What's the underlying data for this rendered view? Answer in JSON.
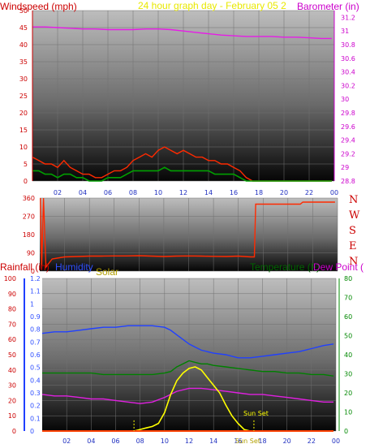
{
  "colors": {
    "wind_text": "#cc0000",
    "wind_series": "#ff2a00",
    "gust_series": "#ff0000",
    "calm_series": "#00a000",
    "baro_text": "#cc00cc",
    "baro_series": "#e61ce6",
    "title_text": "#e8e800",
    "dir_series": "#ff2a00",
    "rain_text": "#cc0000",
    "rain_axis": "#2040ff",
    "humidity_text": "#3050ff",
    "humidity_series": "#2040ff",
    "solar_text": "#b3a000",
    "solar_series": "#ffff00",
    "temp_text": "#006400",
    "temp_series": "#008000",
    "dew_series": "#e020e0",
    "tempaxis_text": "#008800",
    "xaxis_text": "#2030c0",
    "grid": "#707070"
  },
  "chart_data": [
    {
      "type": "line",
      "name": "wind-baro",
      "title": "24 hour graph day - February 05 2",
      "ylabel": "Windspeed (mph)",
      "y2label": "Barometer (in)",
      "xlim": [
        0,
        24
      ],
      "ylim": [
        0,
        50
      ],
      "y2lim": [
        28.8,
        31.3
      ],
      "xticks": [
        "02",
        "04",
        "06",
        "08",
        "10",
        "12",
        "14",
        "16",
        "18",
        "20",
        "22",
        "00"
      ],
      "yticks": [
        "0",
        "5",
        "10",
        "15",
        "20",
        "25",
        "30",
        "35",
        "40",
        "45",
        "50"
      ],
      "y2ticks": [
        "28.8",
        "29",
        "29.2",
        "29.4",
        "29.6",
        "29.8",
        "30",
        "30.2",
        "30.4",
        "30.6",
        "30.8",
        "31",
        "31.2"
      ],
      "series": [
        {
          "x": [
            0,
            1,
            2,
            3,
            4,
            5,
            6,
            7,
            8,
            9,
            10,
            11,
            12,
            13,
            14,
            15,
            16,
            17,
            18,
            19,
            20,
            21,
            22,
            23,
            23.8
          ],
          "values": [
            31.06,
            31.06,
            31.05,
            31.04,
            31.03,
            31.03,
            31.02,
            31.02,
            31.02,
            31.03,
            31.03,
            31.02,
            31.0,
            30.98,
            30.96,
            30.94,
            30.93,
            30.92,
            30.92,
            30.92,
            30.91,
            30.91,
            30.9,
            30.89,
            30.89
          ]
        },
        {
          "x": [
            0,
            0.5,
            1,
            1.5,
            2,
            2.5,
            3,
            3.5,
            4,
            4.5,
            5,
            5.5,
            6,
            6.5,
            7,
            7.5,
            8,
            8.5,
            9,
            9.5,
            10,
            10.5,
            11,
            11.5,
            12,
            12.5,
            13,
            13.5,
            14,
            14.5,
            15,
            15.5,
            16,
            16.5,
            17,
            17.5,
            18,
            19,
            20,
            21,
            22,
            23,
            23.8
          ],
          "values": [
            7,
            6,
            5,
            5,
            4,
            6,
            4,
            3,
            2,
            2,
            1,
            1,
            2,
            3,
            3,
            4,
            6,
            7,
            8,
            7,
            9,
            10,
            9,
            8,
            9,
            8,
            7,
            7,
            6,
            6,
            5,
            5,
            4,
            3,
            1,
            0,
            0,
            0,
            0,
            0,
            0,
            0,
            0
          ]
        },
        {
          "x": [
            0,
            0.5,
            1,
            1.5,
            2,
            2.5,
            3,
            3.5,
            4,
            4.5,
            5,
            5.5,
            6,
            6.5,
            7,
            7.5,
            8,
            8.5,
            9,
            9.5,
            10,
            10.5,
            11,
            11.5,
            12,
            12.5,
            13,
            13.5,
            14,
            14.5,
            15,
            15.5,
            16,
            16.5,
            17,
            17.5,
            18,
            19,
            20,
            21,
            22,
            23,
            23.8
          ],
          "values": [
            3,
            3,
            2,
            2,
            1,
            2,
            2,
            1,
            1,
            0,
            0,
            0,
            1,
            1,
            1,
            2,
            3,
            3,
            3,
            3,
            3,
            4,
            3,
            3,
            3,
            3,
            3,
            3,
            3,
            2,
            2,
            2,
            2,
            1,
            0,
            0,
            0,
            0,
            0,
            0,
            0,
            0,
            0
          ]
        }
      ]
    },
    {
      "type": "line",
      "name": "wind-direction",
      "xlim": [
        0,
        24
      ],
      "ylim": [
        0,
        360
      ],
      "yticks": [
        "0",
        "90",
        "180",
        "270",
        "360"
      ],
      "compass": [
        "N",
        "W",
        "S",
        "E",
        "N"
      ],
      "series": [
        {
          "x": [
            0.05,
            0.15,
            0.3,
            0.5,
            1,
            2,
            3,
            4,
            5,
            6,
            7,
            8,
            9,
            10,
            11,
            12,
            13,
            14,
            15,
            16,
            17,
            17.3,
            17.4,
            18,
            19,
            20,
            21,
            21.2,
            22,
            23,
            23.8
          ],
          "values": [
            360,
            10,
            360,
            20,
            60,
            70,
            72,
            74,
            74,
            75,
            75,
            76,
            74,
            72,
            74,
            75,
            74,
            73,
            72,
            74,
            70,
            70,
            330,
            330,
            330,
            330,
            330,
            340,
            340,
            340,
            340
          ]
        }
      ]
    },
    {
      "type": "line",
      "name": "temp-humidity-solar",
      "ylabel": "Rainfall (in)",
      "y2label": "Humidity",
      "y3label": "Solar",
      "y4label": "Temperature (F)",
      "y5label": "Dew Point (",
      "xlim": [
        0,
        24
      ],
      "ylim": [
        0,
        100
      ],
      "xticks": [
        "02",
        "04",
        "06",
        "08",
        "10",
        "12",
        "14",
        "16",
        "18",
        "20",
        "22",
        "00"
      ],
      "rainticks": [
        "0",
        "0.1",
        "0.2",
        "0.3",
        "0.4",
        "0.5",
        "0.6",
        "0.7",
        "0.8",
        "0.9",
        "1",
        "1.1",
        "1.2"
      ],
      "humticks": [
        "0",
        "10",
        "20",
        "30",
        "40",
        "50",
        "60",
        "70",
        "80",
        "90",
        "100"
      ],
      "tempticks": [
        "0",
        "10",
        "20",
        "30",
        "40",
        "50",
        "60",
        "70",
        "80"
      ],
      "annotations": [
        "Sun Set",
        "Sun Set"
      ],
      "series": [
        {
          "x": [
            0,
            1,
            2,
            3,
            4,
            5,
            6,
            7,
            8,
            9,
            10,
            10.5,
            11,
            11.5,
            12,
            12.5,
            13,
            14,
            15,
            16,
            17,
            18,
            19,
            20,
            21,
            22,
            23,
            23.8
          ],
          "values": [
            64,
            65,
            65,
            66,
            67,
            68,
            68,
            69,
            69,
            69,
            68,
            66,
            63,
            60,
            57,
            55,
            53,
            51,
            50,
            48,
            48,
            49,
            50,
            51,
            52,
            54,
            56,
            57
          ]
        },
        {
          "x": [
            0,
            1,
            2,
            3,
            4,
            5,
            6,
            7,
            8,
            9,
            10,
            10.5,
            11,
            11.5,
            12,
            12.5,
            13,
            13.5,
            14,
            15,
            16,
            17,
            18,
            19,
            20,
            21,
            22,
            23,
            23.8
          ],
          "values": [
            38,
            38,
            38,
            38,
            38,
            37,
            37,
            37,
            37,
            37,
            38,
            39,
            42,
            44,
            46,
            45,
            44,
            44,
            43,
            42,
            41,
            40,
            39,
            39,
            38,
            38,
            37,
            37,
            36
          ]
        },
        {
          "x": [
            0,
            1,
            2,
            3,
            4,
            5,
            6,
            7,
            8,
            9,
            10,
            11,
            12,
            13,
            14,
            15,
            16,
            17,
            18,
            19,
            20,
            21,
            22,
            23,
            23.8
          ],
          "values": [
            24,
            23,
            23,
            22,
            21,
            21,
            20,
            19,
            18,
            19,
            22,
            26,
            28,
            28,
            27,
            26,
            25,
            24,
            24,
            23,
            22,
            21,
            20,
            19,
            19
          ]
        },
        {
          "x": [
            7.5,
            8,
            8.5,
            9,
            9.5,
            10,
            10.5,
            11,
            11.5,
            12,
            12.5,
            13,
            13.5,
            14,
            14.5,
            15,
            15.5,
            16,
            16.5,
            17
          ],
          "values": [
            0,
            1,
            2,
            3,
            5,
            12,
            24,
            33,
            38,
            41,
            42,
            40,
            35,
            30,
            25,
            17,
            10,
            5,
            1,
            0
          ]
        },
        {
          "x": [
            0,
            23.8
          ],
          "values": [
            0,
            0
          ]
        }
      ]
    }
  ]
}
